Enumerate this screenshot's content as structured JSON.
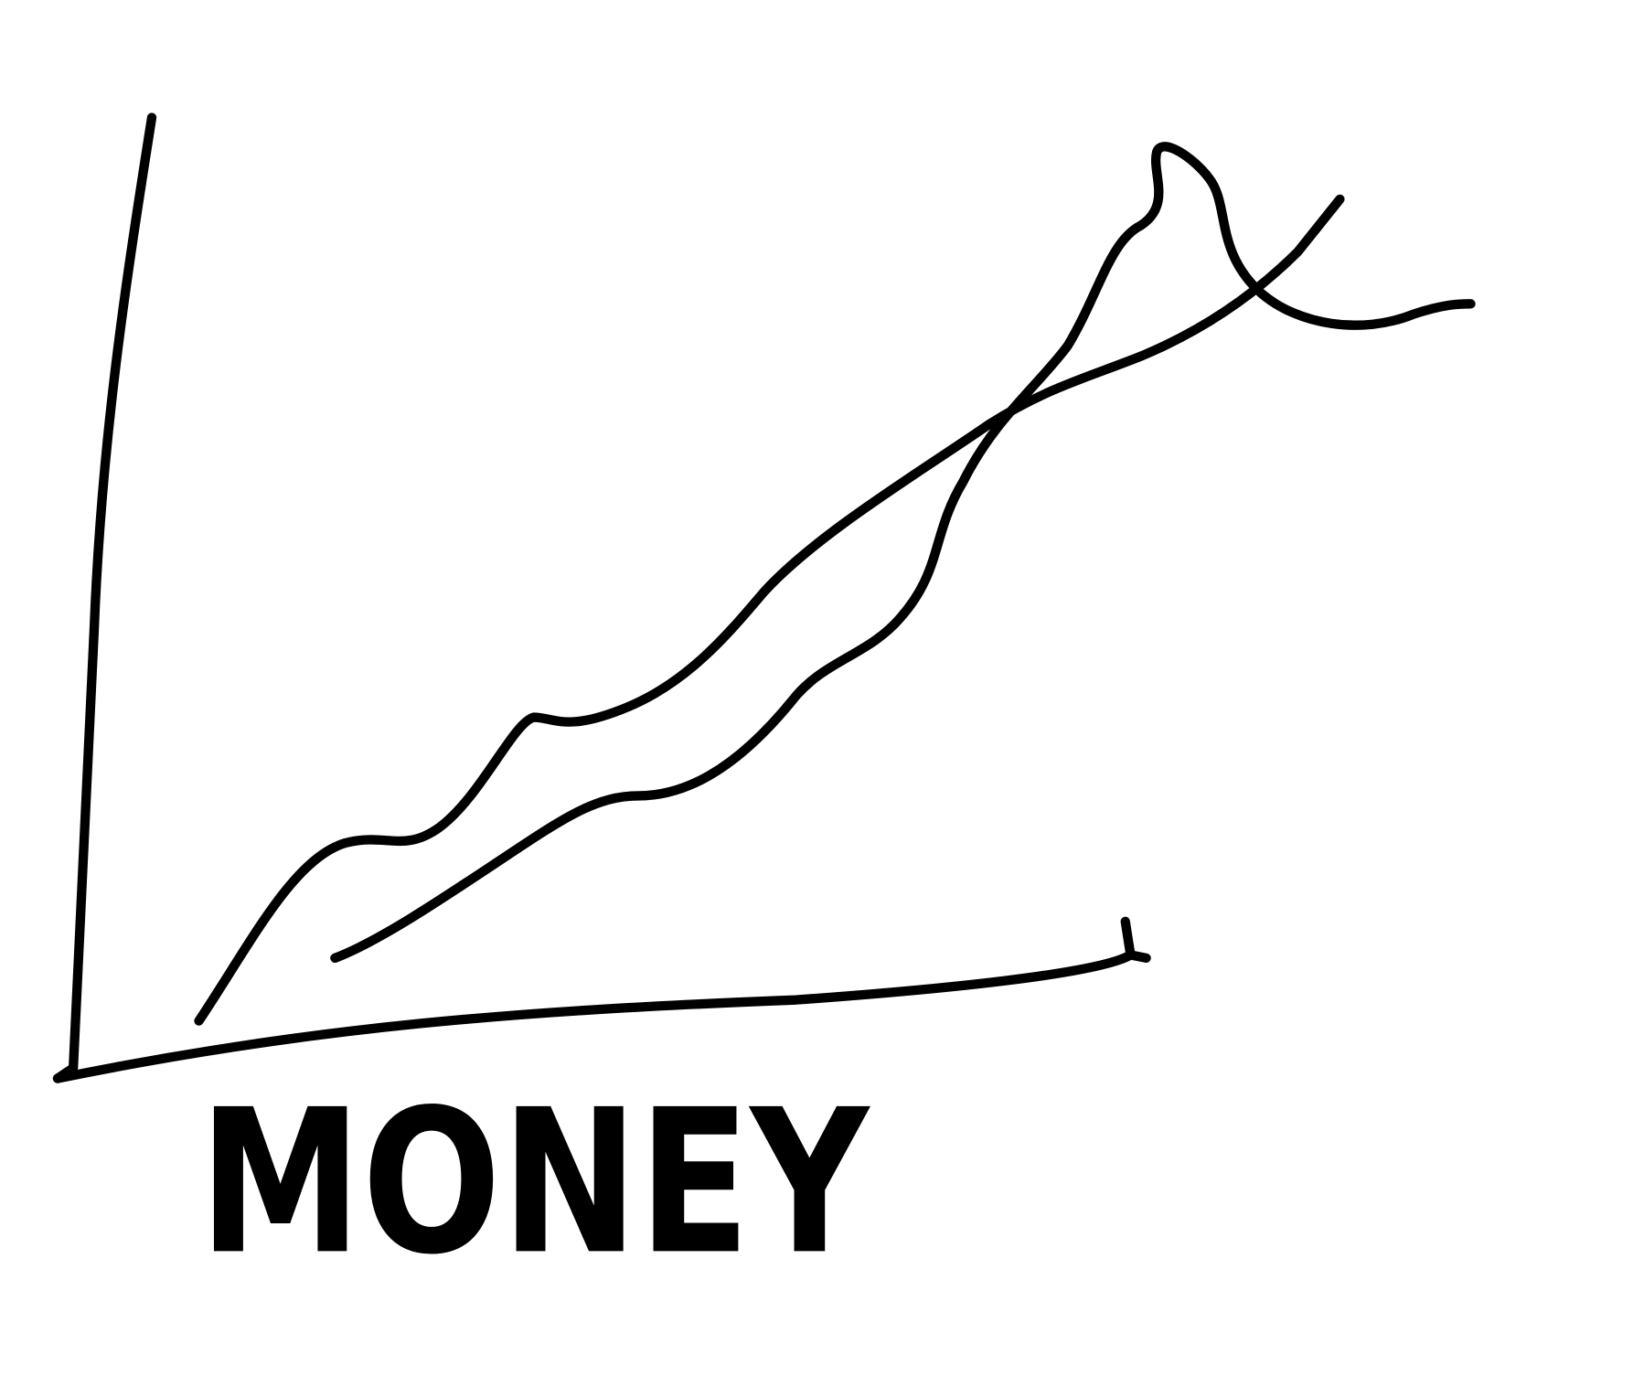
{
  "sketch": {
    "x_axis_label": "MONEY"
  }
}
